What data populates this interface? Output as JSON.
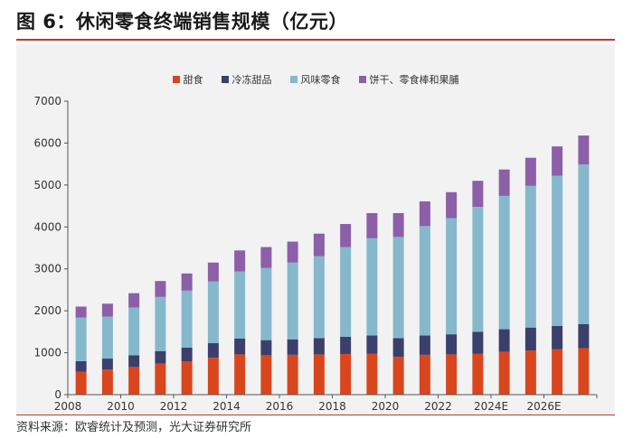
{
  "figure": {
    "title": "图 6：休闲零食终端销售规模（亿元）",
    "source": "资料来源：欧睿统计及预测，光大证券研究所"
  },
  "chart_data": {
    "type": "bar",
    "stacked": true,
    "categories": [
      "2008",
      "2009",
      "2010",
      "2011",
      "2012",
      "2013",
      "2014",
      "2015",
      "2016",
      "2017",
      "2018",
      "2019",
      "2020",
      "2021",
      "2022",
      "2023",
      "2024E",
      "2025E",
      "2026E",
      "2027E"
    ],
    "x_tick_labels": [
      "2008",
      "",
      "2010",
      "",
      "2012",
      "",
      "2014",
      "",
      "2016",
      "",
      "2018",
      "",
      "2020",
      "",
      "2022",
      "",
      "2024E",
      "",
      "2026E",
      ""
    ],
    "ylim": [
      0,
      7000
    ],
    "yticks": [
      0,
      1000,
      2000,
      3000,
      4000,
      5000,
      6000,
      7000
    ],
    "grid": false,
    "legend_position": "top-center",
    "series": [
      {
        "name": "甜食",
        "color": "#d9461e",
        "values": [
          550,
          600,
          660,
          740,
          790,
          880,
          960,
          940,
          950,
          960,
          970,
          980,
          900,
          950,
          960,
          980,
          1020,
          1050,
          1080,
          1110
        ]
      },
      {
        "name": "冷冻甜品",
        "color": "#3b3f6b",
        "values": [
          250,
          260,
          280,
          300,
          330,
          350,
          380,
          360,
          370,
          390,
          410,
          430,
          450,
          460,
          480,
          520,
          540,
          550,
          560,
          570
        ]
      },
      {
        "name": "风味零食",
        "color": "#86b8cc",
        "values": [
          1040,
          1000,
          1140,
          1290,
          1360,
          1470,
          1600,
          1720,
          1830,
          1950,
          2140,
          2320,
          2410,
          2610,
          2770,
          2980,
          3180,
          3380,
          3580,
          3810
        ]
      },
      {
        "name": "饼干、零食棒和果脯",
        "color": "#8c5fa8",
        "values": [
          260,
          310,
          340,
          380,
          410,
          450,
          500,
          500,
          500,
          540,
          550,
          600,
          570,
          590,
          620,
          620,
          630,
          670,
          700,
          690
        ]
      }
    ]
  }
}
